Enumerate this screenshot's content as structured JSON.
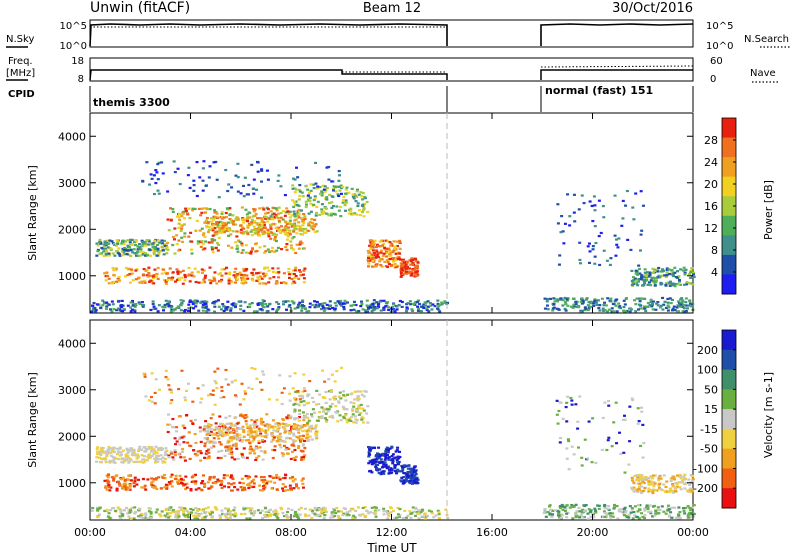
{
  "header": {
    "radar": "Unwin (fitACF)",
    "beam": "Beam 12",
    "date": "30/Oct/2016"
  },
  "strips": {
    "nsky_label": "N.Sky",
    "nsky_ticks": [
      "10^5",
      "10^0"
    ],
    "nsearch_label": "N.Search",
    "freq_label_1": "Freq.",
    "freq_label_2": "[MHz]",
    "freq_ticks": [
      "18",
      "8"
    ],
    "nave_label": "Nave",
    "nave_ticks": [
      "60",
      "0"
    ],
    "cpid_label": "CPID",
    "cpid_segments": [
      {
        "text": "themis 3300",
        "start_h": 0,
        "end_h": 14.2
      },
      {
        "text": "normal (fast) 151",
        "start_h": 17.95,
        "end_h": 24
      }
    ],
    "data_gap_h": [
      14.2,
      17.95
    ]
  },
  "chart_data": [
    {
      "type": "heatmap",
      "title": "",
      "ylabel": "Slant Range [km]",
      "xlim": [
        0,
        24
      ],
      "ylim": [
        200,
        4500
      ],
      "yticks": [
        "1000",
        "2000",
        "3000",
        "4000"
      ],
      "colorbar": {
        "label": "Power [dB]",
        "range": [
          0,
          32
        ],
        "ticks": [
          "4",
          "8",
          "12",
          "16",
          "20",
          "24",
          "28"
        ],
        "colors": [
          "#1e1ef0",
          "#1f4fa8",
          "#3f8f8a",
          "#4fae5a",
          "#a8cc3a",
          "#f0d020",
          "#f0a020",
          "#f07020",
          "#e82010"
        ]
      }
    },
    {
      "type": "heatmap",
      "title": "",
      "ylabel": "Slant Range [km]",
      "xlabel": "Time UT",
      "xlim": [
        0,
        24
      ],
      "ylim": [
        200,
        4500
      ],
      "yticks": [
        "1000",
        "2000",
        "3000",
        "4000"
      ],
      "xticks": [
        "00:00",
        "04:00",
        "08:00",
        "12:00",
        "16:00",
        "20:00",
        "00:00"
      ],
      "colorbar": {
        "label": "Velocity [m s-1]",
        "ticks": [
          "200",
          "100",
          "50",
          "15",
          "-15",
          "-50",
          "-100",
          "-200"
        ],
        "colors": [
          "#1a1ad0",
          "#1f4fa8",
          "#3f8f6a",
          "#6ab040",
          "#c8c8c8",
          "#f0d040",
          "#f0a020",
          "#f06010",
          "#e81010"
        ]
      }
    }
  ]
}
